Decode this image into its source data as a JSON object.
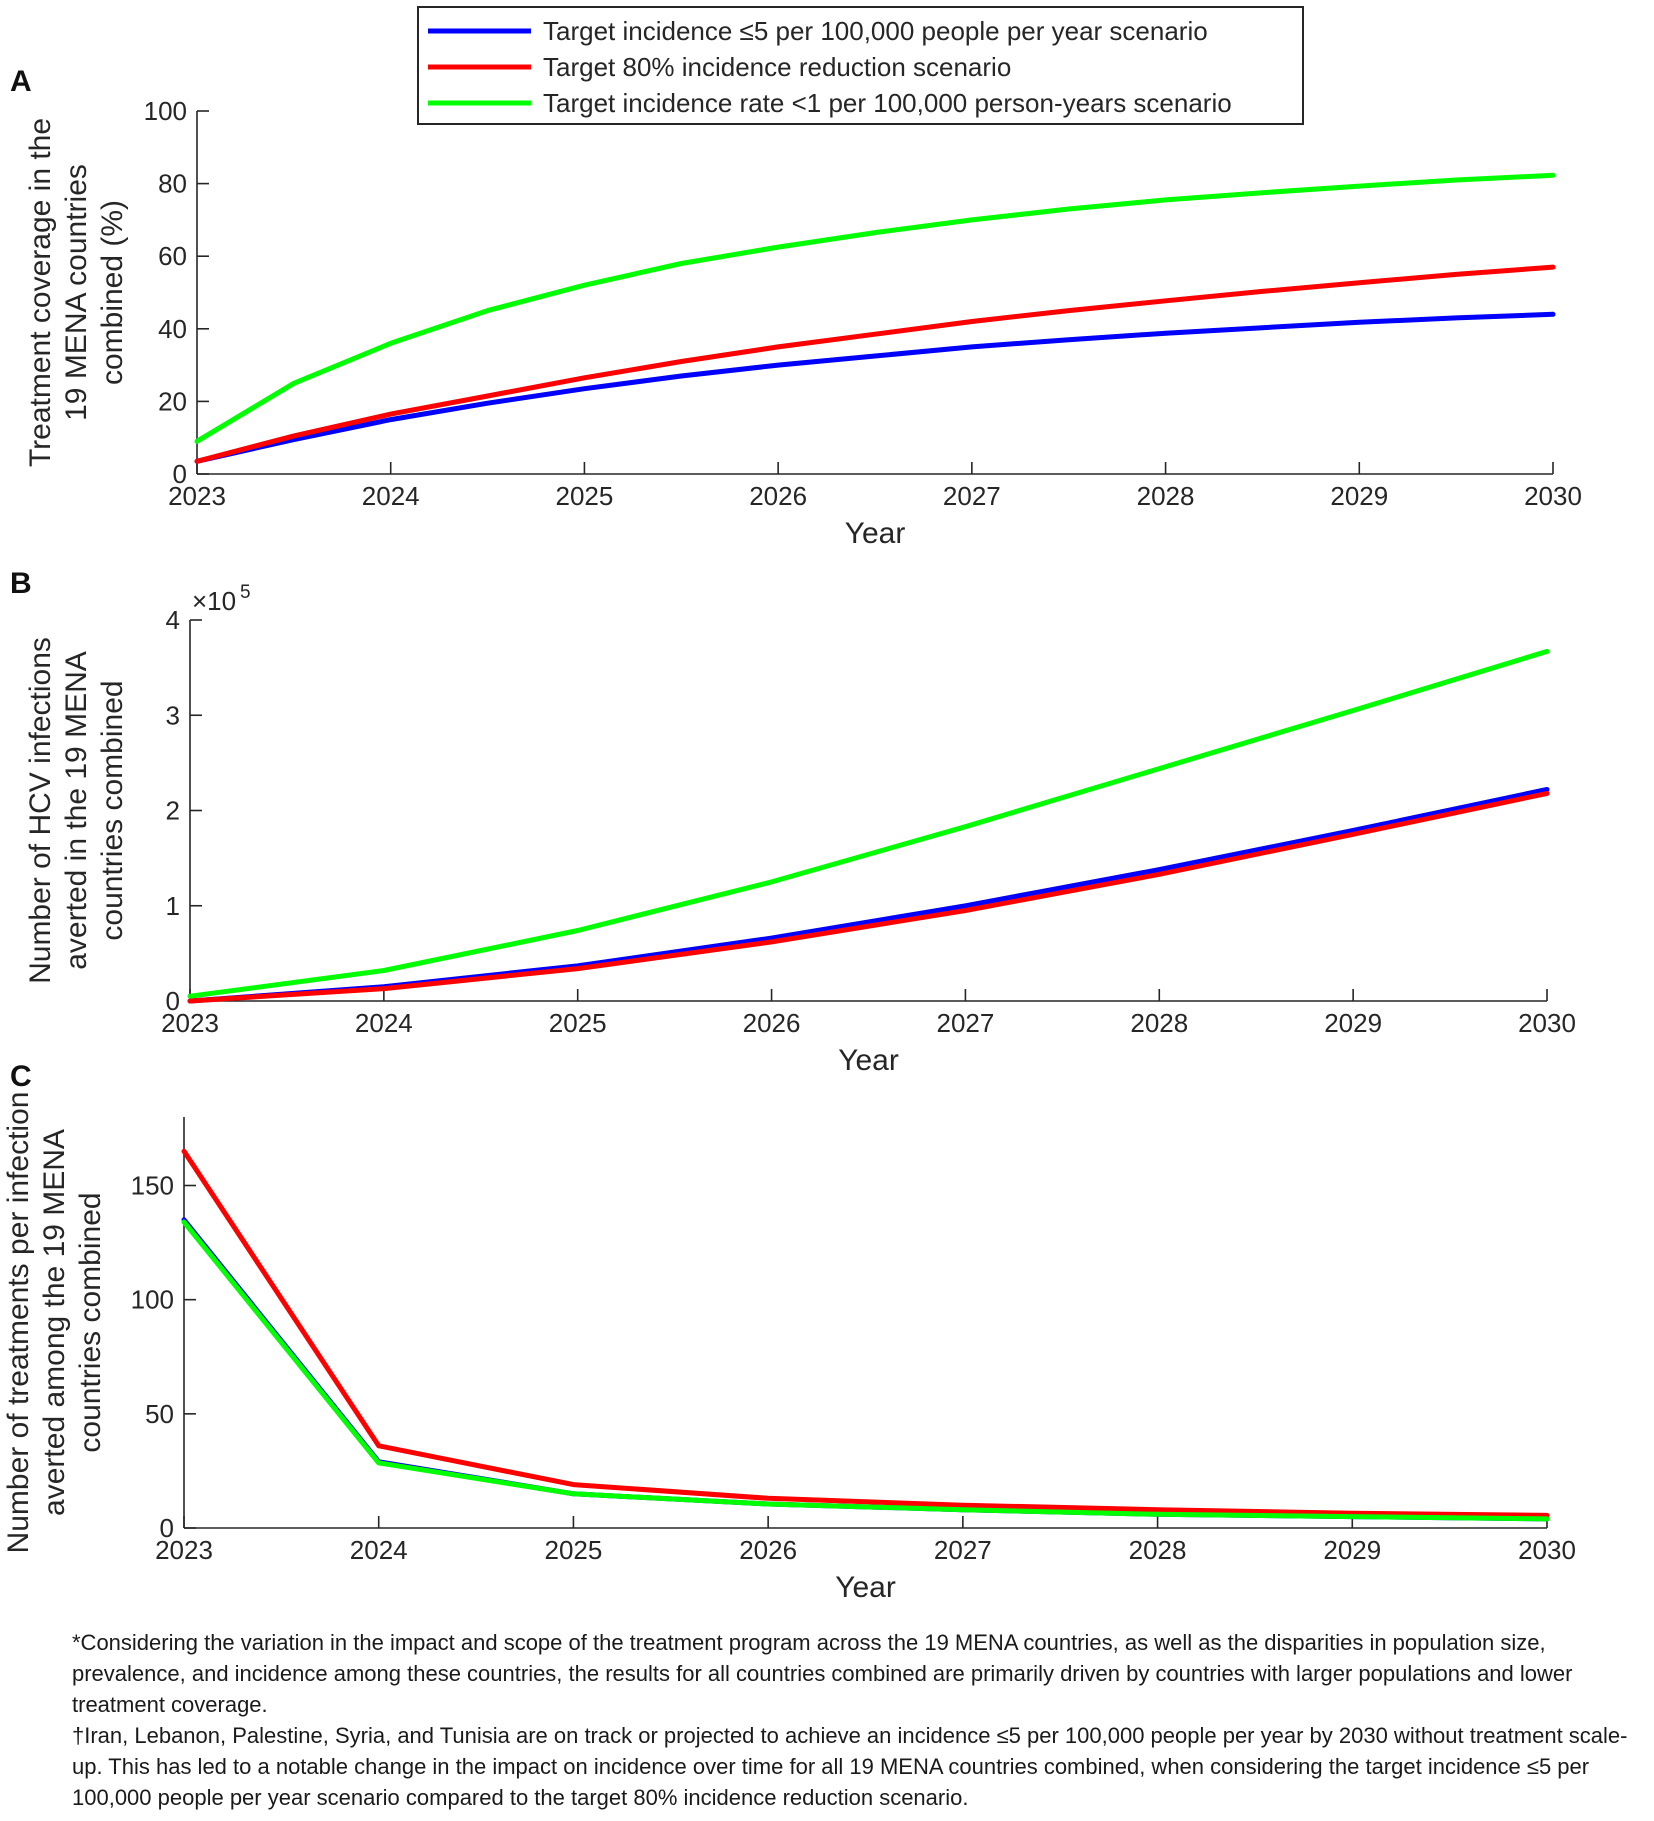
{
  "legend": {
    "entries": [
      {
        "label": "Target incidence ≤5 per 100,000 people per year scenario",
        "color": "#0000ff"
      },
      {
        "label": "Target 80% incidence reduction scenario",
        "color": "#ff0000"
      },
      {
        "label": "Target incidence rate <1 per 100,000 person-years scenario",
        "color": "#00ff00"
      }
    ]
  },
  "chart_data": [
    {
      "panel": "A",
      "type": "line",
      "xlabel": "Year",
      "ylabel_lines": [
        "Treatment coverage in the",
        "19 MENA countries",
        "combined (%)"
      ],
      "xlim": [
        2023,
        2030
      ],
      "ylim": [
        0,
        100
      ],
      "xticks": [
        2023,
        2024,
        2025,
        2026,
        2027,
        2028,
        2029,
        2030
      ],
      "yticks": [
        0,
        20,
        40,
        60,
        80,
        100
      ],
      "exponent_label": "",
      "series": [
        {
          "name": "Target incidence ≤5 per 100,000 people per year scenario",
          "color": "#0000ff",
          "x": [
            2023,
            2023.5,
            2024,
            2024.5,
            2025,
            2025.5,
            2026,
            2026.5,
            2027,
            2027.5,
            2028,
            2028.5,
            2029,
            2029.5,
            2030
          ],
          "y": [
            3.5,
            9.5,
            15,
            19.5,
            23.5,
            27,
            30,
            32.5,
            35,
            37,
            38.8,
            40.3,
            41.8,
            43,
            44
          ]
        },
        {
          "name": "Target 80% incidence reduction scenario",
          "color": "#ff0000",
          "x": [
            2023,
            2023.5,
            2024,
            2024.5,
            2025,
            2025.5,
            2026,
            2026.5,
            2027,
            2027.5,
            2028,
            2028.5,
            2029,
            2029.5,
            2030
          ],
          "y": [
            3.5,
            10.5,
            16.5,
            21.5,
            26.5,
            31,
            35,
            38.5,
            42,
            45,
            47.7,
            50.3,
            52.7,
            55,
            57
          ]
        },
        {
          "name": "Target incidence rate <1 per 100,000 person-years scenario",
          "color": "#00ff00",
          "x": [
            2023,
            2023.5,
            2024,
            2024.5,
            2025,
            2025.5,
            2026,
            2026.5,
            2027,
            2027.5,
            2028,
            2028.5,
            2029,
            2029.5,
            2030
          ],
          "y": [
            9,
            25,
            36,
            45,
            52,
            58,
            62.5,
            66.5,
            70,
            73,
            75.5,
            77.5,
            79.3,
            81,
            82.3
          ]
        }
      ]
    },
    {
      "panel": "B",
      "type": "line",
      "xlabel": "Year",
      "ylabel_lines": [
        "Number of HCV infections",
        "averted in the 19 MENA",
        "countries combined"
      ],
      "xlim": [
        2023,
        2030
      ],
      "ylim": [
        0,
        4
      ],
      "xticks": [
        2023,
        2024,
        2025,
        2026,
        2027,
        2028,
        2029,
        2030
      ],
      "yticks": [
        0,
        1,
        2,
        3,
        4
      ],
      "exponent_label": "×10",
      "exponent_power": "5",
      "series": [
        {
          "name": "Target incidence ≤5 per 100,000 people per year scenario",
          "color": "#0000ff",
          "x": [
            2023,
            2024,
            2025,
            2026,
            2027,
            2028,
            2029,
            2030
          ],
          "y": [
            0.0,
            0.15,
            0.37,
            0.66,
            1.0,
            1.38,
            1.79,
            2.22
          ]
        },
        {
          "name": "Target 80% incidence reduction scenario",
          "color": "#ff0000",
          "x": [
            2023,
            2024,
            2025,
            2026,
            2027,
            2028,
            2029,
            2030
          ],
          "y": [
            0.0,
            0.13,
            0.34,
            0.62,
            0.95,
            1.33,
            1.75,
            2.18
          ]
        },
        {
          "name": "Target incidence rate <1 per 100,000 person-years scenario",
          "color": "#00ff00",
          "x": [
            2023,
            2024,
            2025,
            2026,
            2027,
            2028,
            2029,
            2030
          ],
          "y": [
            0.05,
            0.32,
            0.74,
            1.25,
            1.83,
            2.44,
            3.05,
            3.67
          ]
        }
      ]
    },
    {
      "panel": "C",
      "type": "line",
      "xlabel": "Year",
      "ylabel_lines": [
        "Number of treatments per infection",
        "averted among the 19 MENA",
        "countries combined"
      ],
      "xlim": [
        2023,
        2030
      ],
      "ylim": [
        0,
        180
      ],
      "xticks": [
        2023,
        2024,
        2025,
        2026,
        2027,
        2028,
        2029,
        2030
      ],
      "yticks": [
        0,
        50,
        100,
        150
      ],
      "exponent_label": "",
      "series": [
        {
          "name": "Target incidence ≤5 per 100,000 people per year scenario",
          "color": "#0000ff",
          "x": [
            2023,
            2024,
            2025,
            2026,
            2027,
            2028,
            2029,
            2030
          ],
          "y": [
            135,
            29,
            15,
            10.5,
            8,
            6,
            5,
            4
          ]
        },
        {
          "name": "Target 80% incidence reduction scenario",
          "color": "#ff0000",
          "x": [
            2023,
            2024,
            2025,
            2026,
            2027,
            2028,
            2029,
            2030
          ],
          "y": [
            165,
            36,
            19,
            13,
            10,
            8,
            6.5,
            5.5
          ]
        },
        {
          "name": "Target incidence rate <1 per 100,000 person-years scenario",
          "color": "#00ff00",
          "x": [
            2023,
            2024,
            2025,
            2026,
            2027,
            2028,
            2029,
            2030
          ],
          "y": [
            134,
            28.5,
            15,
            10.5,
            8,
            6,
            5,
            4
          ]
        }
      ]
    }
  ],
  "footnotes": [
    "*Considering the variation in the impact and scope of the treatment program across the 19 MENA countries, as well as the disparities in population size, prevalence, and incidence among these countries, the results for all countries combined are primarily driven by countries with larger populations and lower treatment coverage.",
    "†Iran, Lebanon, Palestine, Syria, and Tunisia are on track or projected to achieve an incidence ≤5 per 100,000 people per year by 2030 without treatment scale-up. This has led to a notable change in the impact on incidence over time for all 19 MENA countries combined, when considering the target incidence ≤5 per 100,000 people per year scenario compared to the target 80% incidence reduction scenario."
  ]
}
